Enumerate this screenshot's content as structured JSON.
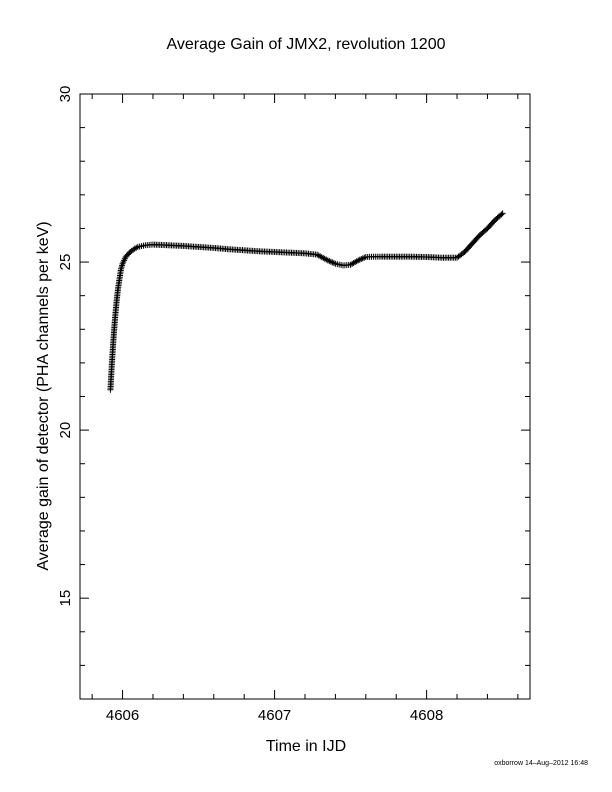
{
  "chart_data": {
    "type": "scatter",
    "title": "Average Gain of JMX2, revolution 1200",
    "xlabel": "Time in IJD",
    "ylabel": "Average gain of detector (PHA channels per keV)",
    "xlim": [
      4605.72,
      4608.68
    ],
    "ylim": [
      12,
      30
    ],
    "xticks": [
      4606,
      4607,
      4608
    ],
    "xtick_labels": [
      "4606",
      "4607",
      "4608"
    ],
    "yticks": [
      15,
      20,
      25,
      30
    ],
    "ytick_labels": [
      "15",
      "20",
      "25",
      "30"
    ],
    "marker": "+",
    "series": [
      {
        "x": [
          4605.92,
          4605.93,
          4605.94,
          4605.95,
          4605.96,
          4605.97,
          4605.98,
          4605.99,
          4606.0,
          4606.02,
          4606.05,
          4606.08,
          4606.1,
          4606.15,
          4606.2,
          4606.3,
          4606.4,
          4606.5,
          4606.6,
          4606.7,
          4606.8,
          4606.9,
          4607.0,
          4607.1,
          4607.2,
          4607.28,
          4607.35,
          4607.4,
          4607.45,
          4607.5,
          4607.55,
          4607.6,
          4607.65,
          4607.7,
          4607.8,
          4607.9,
          4608.0,
          4608.1,
          4608.2,
          4608.25,
          4608.3,
          4608.35,
          4608.4,
          4608.45,
          4608.5
        ],
        "y": [
          21.2,
          22.0,
          22.7,
          23.3,
          23.8,
          24.2,
          24.5,
          24.8,
          24.95,
          25.15,
          25.3,
          25.4,
          25.45,
          25.5,
          25.52,
          25.5,
          25.48,
          25.45,
          25.42,
          25.38,
          25.35,
          25.32,
          25.3,
          25.28,
          25.26,
          25.22,
          25.05,
          24.95,
          24.9,
          24.92,
          25.05,
          25.15,
          25.16,
          25.16,
          25.16,
          25.16,
          25.15,
          25.13,
          25.13,
          25.3,
          25.55,
          25.8,
          26.0,
          26.25,
          26.45
        ]
      }
    ]
  },
  "credit": "oxborrow 14–Aug–2012 16:48"
}
